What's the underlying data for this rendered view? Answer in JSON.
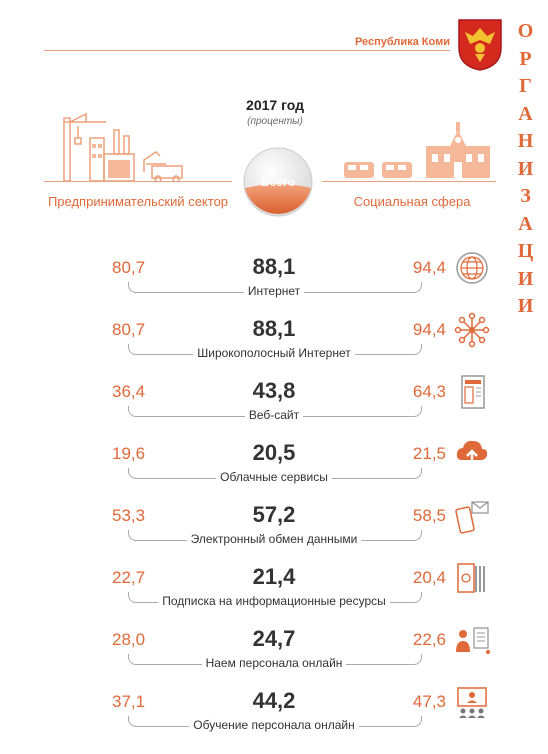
{
  "header": {
    "region": "Республика Коми",
    "vertical_word": "ОРГАНИЗАЦИИ"
  },
  "title": {
    "year": "2017 год",
    "unit": "(проценты)"
  },
  "center": {
    "label": "Всего"
  },
  "sectors": {
    "left": "Предпринимательский сектор",
    "right": "Социальная сфера"
  },
  "colors": {
    "accent": "#e0693a",
    "text": "#333333",
    "rule": "#aaaaaa"
  },
  "rows": [
    {
      "label": "Интернет",
      "business": "80,7",
      "total": "88,1",
      "social": "94,4",
      "icon": "globe-icon"
    },
    {
      "label": "Широкополосный Интернет",
      "business": "80,7",
      "total": "88,1",
      "social": "94,4",
      "icon": "network-hub-icon"
    },
    {
      "label": "Веб-сайт",
      "business": "36,4",
      "total": "43,8",
      "social": "64,3",
      "icon": "web-page-icon"
    },
    {
      "label": "Облачные сервисы",
      "business": "19,6",
      "total": "20,5",
      "social": "21,5",
      "icon": "cloud-upload-icon"
    },
    {
      "label": "Электронный обмен данными",
      "business": "53,3",
      "total": "57,2",
      "social": "58,5",
      "icon": "phone-mail-icon"
    },
    {
      "label": "Подписка на информационные ресурсы",
      "business": "22,7",
      "total": "21,4",
      "social": "20,4",
      "icon": "subscription-icon"
    },
    {
      "label": "Наем персонала онлайн",
      "business": "28,0",
      "total": "24,7",
      "social": "22,6",
      "icon": "hiring-icon"
    },
    {
      "label": "Обучение персонала онлайн",
      "business": "37,1",
      "total": "44,2",
      "social": "47,3",
      "icon": "training-icon"
    }
  ]
}
